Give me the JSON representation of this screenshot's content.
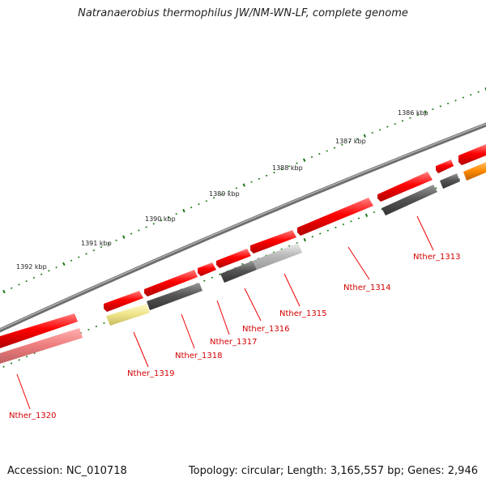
{
  "title": "Natranaerobius thermophilus JW/NM-WN-LF, complete genome",
  "footer": {
    "accession": "Accession: NC_010718",
    "summary": "Topology: circular; Length: 3,165,557 bp; Genes: 2,946"
  },
  "ruler": {
    "ticks": [
      "1386 kbp",
      "1387 kbp",
      "1388 kbp",
      "1389 kbp",
      "1390 kbp",
      "1391 kbp",
      "1392 kbp"
    ]
  },
  "genes": [
    {
      "label": "Nther_1313"
    },
    {
      "label": "Nther_1314"
    },
    {
      "label": "Nther_1315"
    },
    {
      "label": "Nther_1316"
    },
    {
      "label": "Nther_1317"
    },
    {
      "label": "Nther_1318"
    },
    {
      "label": "Nther_1319"
    },
    {
      "label": "Nther_1320"
    }
  ],
  "colors": {
    "cds": "#ff0000",
    "cds_light": "#f08080",
    "gray_dark": "#555555",
    "gray_light": "#bbbbbb",
    "yellow": "#f0e68c",
    "orange": "#ff8c00",
    "label": "#d40000",
    "ruler": "#1a7a1a",
    "backbone": "#777777"
  }
}
